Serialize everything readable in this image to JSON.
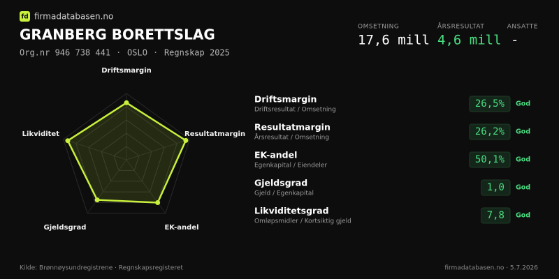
{
  "header": {
    "brand": "firmadatabasen.no",
    "logo": "fd",
    "title": "GRANBERG BORETTSLAG",
    "meta": [
      "Org.nr 946 738 441",
      "OSLO",
      "Regnskap 2025"
    ]
  },
  "key_figures": [
    {
      "label": "OMSETNING",
      "value": "17,6 mill"
    },
    {
      "label": "ÅRSRESULTAT",
      "value": "4,6 mill"
    },
    {
      "label": "ANSATTE",
      "value": "-"
    }
  ],
  "chart_data": {
    "type": "radar",
    "categories": [
      "Driftsmargin",
      "Resultatmargin",
      "EK-andel",
      "Gjeldsgrad",
      "Likviditet"
    ],
    "values": [
      86,
      94,
      80,
      75,
      93
    ],
    "color": "#c8f03c",
    "rlim": [
      0,
      100
    ],
    "rticks": [
      20,
      40,
      60,
      80,
      100
    ]
  },
  "ratios": [
    {
      "name": "Driftsmargin",
      "description": "Driftsresultat / Omsetning",
      "value": "26,5%",
      "rating": "God"
    },
    {
      "name": "Resultatmargin",
      "description": "Årsresultat / Omsetning",
      "value": "26,2%",
      "rating": "God"
    },
    {
      "name": "EK-andel",
      "description": "Egenkapital / Eiendeler",
      "value": "50,1%",
      "rating": "God"
    },
    {
      "name": "Gjeldsgrad",
      "description": "Gjeld / Egenkapital",
      "value": "1,0",
      "rating": "God"
    },
    {
      "name": "Likviditetsgrad",
      "description": "Omløpsmidler / Kortsiktig gjeld",
      "value": "7,8",
      "rating": "God"
    }
  ],
  "footer": {
    "source": "Kilde: Brønnøysundregistrene · Regnskapsregisteret",
    "site": "firmadatabasen.no · 5.7.2026"
  }
}
